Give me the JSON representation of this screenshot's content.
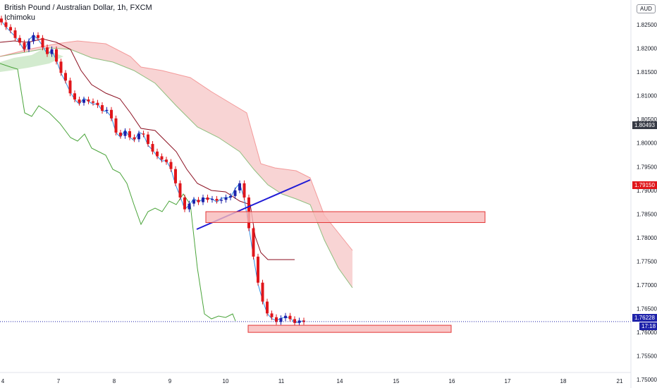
{
  "header": {
    "symbol": "British Pound / Australian Dollar, 1h, FXCM",
    "indicator": "Ichimoku"
  },
  "currency_button": "AUD",
  "price_axis": {
    "ticks": [
      "1.82500",
      "1.82000",
      "1.81500",
      "1.81000",
      "1.80500",
      "1.80000",
      "1.79500",
      "1.79000",
      "1.78500",
      "1.78000",
      "1.77500",
      "1.77000",
      "1.76500",
      "1.76000",
      "1.75500",
      "1.75000"
    ],
    "tags": {
      "last_close": "1.80493",
      "red_level": "1.79150",
      "current": "1.76228",
      "countdown": "17:18"
    }
  },
  "time_axis": {
    "ticks": [
      "4",
      "7",
      "8",
      "9",
      "10",
      "11",
      "14",
      "15",
      "16",
      "17",
      "18",
      "21"
    ]
  },
  "colors": {
    "up": "#1e22aa",
    "down": "#e0161b",
    "tenkan": "#2c8ee6",
    "kijun": "#8b0e1f",
    "chikou": "#4aa43a",
    "cloud_bear": "#f5c6c6",
    "cloud_bull": "#c8e6c3",
    "zone_fill": "#f7b9b9",
    "zone_stroke": "#e33535",
    "trendline": "#1f1bd6"
  },
  "chart_data": {
    "type": "candlestick",
    "title": "British Pound / Australian Dollar, 1h, FXCM",
    "indicator": "Ichimoku",
    "ylim": [
      1.7495,
      1.8285
    ],
    "current_price": 1.76228,
    "close_series": [
      1.8255,
      1.8245,
      1.8238,
      1.8222,
      1.8212,
      1.8198,
      1.8215,
      1.8228,
      1.8222,
      1.8202,
      1.8188,
      1.8198,
      1.8172,
      1.8148,
      1.8132,
      1.8105,
      1.8092,
      1.8085,
      1.8092,
      1.8088,
      1.8085,
      1.808,
      1.8068,
      1.807,
      1.8052,
      1.8022,
      1.8015,
      1.8025,
      1.8012,
      1.8008,
      1.802,
      1.8018,
      1.7998,
      1.7982,
      1.7972,
      1.7965,
      1.796,
      1.7945,
      1.7915,
      1.7885,
      1.786,
      1.7872,
      1.788,
      1.7875,
      1.7885,
      1.788,
      1.7882,
      1.7878,
      1.788,
      1.7885,
      1.7888,
      1.79,
      1.7915,
      1.7885,
      1.782,
      1.776,
      1.7705,
      1.7665,
      1.764,
      1.7632,
      1.7622,
      1.763,
      1.7635,
      1.7628,
      1.762,
      1.7625,
      1.7622
    ],
    "zones": [
      {
        "low": 1.7832,
        "high": 1.7855
      },
      {
        "low": 1.76,
        "high": 1.7615
      }
    ]
  }
}
